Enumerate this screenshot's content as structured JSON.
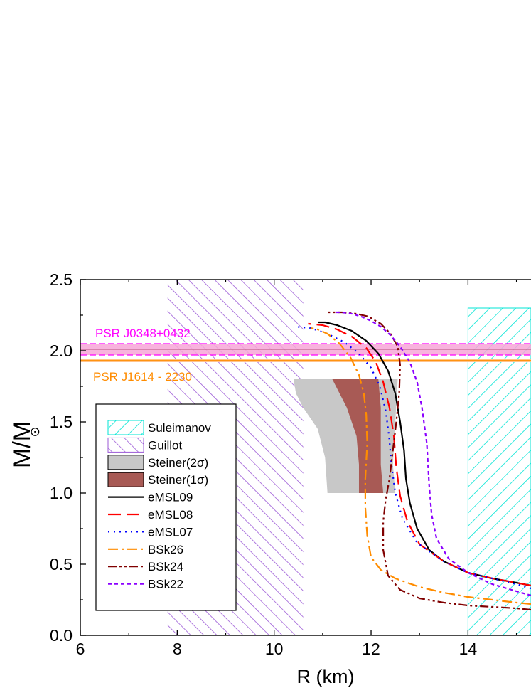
{
  "chart_data": {
    "type": "line",
    "xlabel": "R (km)",
    "ylabel": "M/M",
    "ylabel_symbol": "⊙",
    "xlim": [
      6,
      15.3
    ],
    "ylim": [
      0.0,
      2.5
    ],
    "x_ticks": [
      "6",
      "8",
      "10",
      "12",
      "14"
    ],
    "y_ticks": [
      "0.0",
      "0.5",
      "1.0",
      "1.5",
      "2.0",
      "2.5"
    ],
    "grid": false,
    "legend_position": "left",
    "constraints": {
      "psr_j0348": {
        "label": "PSR J0348+0432",
        "mass": 2.01,
        "band": [
          1.97,
          2.05
        ],
        "color": "#ff00ff"
      },
      "psr_j1614": {
        "label": "PSR J1614 - 2230",
        "mass": 1.93,
        "band": [
          1.92,
          1.94
        ],
        "color": "#ff8c00"
      },
      "guillot": {
        "label": "Guillot",
        "r_range": [
          7.8,
          10.6
        ],
        "m_range": [
          0,
          2.5
        ],
        "color": "#9b59d6"
      },
      "suleimanov": {
        "label": "Suleimanov",
        "r_range": [
          14,
          15.3
        ],
        "m_range": [
          0,
          2.3
        ],
        "color": "#00e5d5"
      },
      "steiner_2sigma": {
        "label": "Steiner(2σ)",
        "color": "#c8c8c8",
        "polygon": [
          [
            10.4,
            1.8
          ],
          [
            11.25,
            1.8
          ],
          [
            12.55,
            1.8
          ],
          [
            12.5,
            1.5
          ],
          [
            12.45,
            1.2
          ],
          [
            12.5,
            1.0
          ],
          [
            11.1,
            1.0
          ],
          [
            11.05,
            1.25
          ],
          [
            10.9,
            1.45
          ],
          [
            10.6,
            1.6
          ],
          [
            10.45,
            1.7
          ]
        ]
      },
      "steiner_1sigma": {
        "label": "Steiner(1σ)",
        "color": "#a85a55",
        "polygon": [
          [
            11.2,
            1.8
          ],
          [
            12.15,
            1.8
          ],
          [
            12.2,
            1.6
          ],
          [
            12.2,
            1.2
          ],
          [
            12.25,
            1.0
          ],
          [
            11.75,
            1.0
          ],
          [
            11.75,
            1.2
          ],
          [
            11.7,
            1.4
          ],
          [
            11.5,
            1.6
          ]
        ]
      }
    },
    "series": [
      {
        "name": "eMSL09",
        "color": "#000000",
        "dash": "",
        "x": [
          15.3,
          15.0,
          14.5,
          14.0,
          13.5,
          13.2,
          12.95,
          12.8,
          12.72,
          12.68,
          12.6,
          12.5,
          12.35,
          12.15,
          11.9,
          11.6,
          11.3,
          11.05,
          10.9
        ],
        "y": [
          0.35,
          0.37,
          0.4,
          0.44,
          0.52,
          0.6,
          0.75,
          0.93,
          1.1,
          1.3,
          1.5,
          1.7,
          1.86,
          1.98,
          2.07,
          2.14,
          2.18,
          2.2,
          2.2
        ]
      },
      {
        "name": "eMSL08",
        "color": "#ff0000",
        "dash": "18,8",
        "x": [
          15.3,
          15.0,
          14.5,
          14.0,
          13.5,
          13.0,
          12.75,
          12.6,
          12.52,
          12.47,
          12.38,
          12.25,
          12.1,
          11.9,
          11.6,
          11.3,
          11.0,
          10.7
        ],
        "y": [
          0.35,
          0.37,
          0.4,
          0.44,
          0.52,
          0.64,
          0.8,
          0.98,
          1.18,
          1.4,
          1.6,
          1.78,
          1.92,
          2.02,
          2.1,
          2.15,
          2.18,
          2.19
        ]
      },
      {
        "name": "eMSL07",
        "color": "#0000ff",
        "dash": "2,6",
        "x": [
          15.3,
          15.0,
          14.5,
          14.0,
          13.5,
          12.95,
          12.65,
          12.5,
          12.42,
          12.37,
          12.3,
          12.18,
          12.0,
          11.75,
          11.45,
          11.1,
          10.75,
          10.4
        ],
        "y": [
          0.33,
          0.36,
          0.4,
          0.44,
          0.52,
          0.65,
          0.82,
          1.0,
          1.2,
          1.4,
          1.58,
          1.75,
          1.88,
          1.98,
          2.06,
          2.12,
          2.16,
          2.17
        ]
      },
      {
        "name": "BSk26",
        "color": "#ff8c00",
        "dash": "14,5,3,5",
        "x": [
          15.3,
          15.0,
          14.5,
          14.0,
          13.5,
          13.0,
          12.5,
          12.2,
          12.0,
          11.92,
          11.88,
          11.88,
          11.92,
          11.9,
          11.85,
          11.75,
          11.58,
          11.35,
          11.1,
          10.9,
          10.75
        ],
        "y": [
          0.22,
          0.23,
          0.25,
          0.27,
          0.3,
          0.34,
          0.4,
          0.46,
          0.55,
          0.7,
          0.9,
          1.1,
          1.35,
          1.55,
          1.7,
          1.83,
          1.95,
          2.05,
          2.12,
          2.15,
          2.16
        ]
      },
      {
        "name": "BSk24",
        "color": "#800000",
        "dash": "12,4,3,4,3,4",
        "x": [
          15.3,
          15.0,
          14.5,
          14.0,
          13.5,
          13.0,
          12.6,
          12.35,
          12.25,
          12.25,
          12.3,
          12.38,
          12.45,
          12.52,
          12.58,
          12.6,
          12.55,
          12.4,
          12.2,
          11.95,
          11.7,
          11.4,
          11.2,
          11.1
        ],
        "y": [
          0.18,
          0.19,
          0.2,
          0.21,
          0.23,
          0.26,
          0.32,
          0.42,
          0.6,
          0.8,
          0.95,
          1.1,
          1.3,
          1.5,
          1.7,
          1.9,
          2.03,
          2.12,
          2.19,
          2.24,
          2.26,
          2.27,
          2.27,
          2.27
        ]
      },
      {
        "name": "BSk22",
        "color": "#8b00ff",
        "dash": "5,4",
        "x": [
          15.3,
          15.0,
          14.5,
          14.0,
          13.6,
          13.35,
          13.25,
          13.2,
          13.15,
          13.05,
          12.95,
          12.8,
          12.6,
          12.4,
          12.2,
          12.0,
          11.8,
          11.6,
          11.4,
          11.25
        ],
        "y": [
          0.28,
          0.31,
          0.36,
          0.44,
          0.54,
          0.68,
          0.85,
          1.05,
          1.35,
          1.6,
          1.78,
          1.92,
          2.03,
          2.11,
          2.17,
          2.21,
          2.24,
          2.26,
          2.27,
          2.27
        ]
      }
    ]
  }
}
